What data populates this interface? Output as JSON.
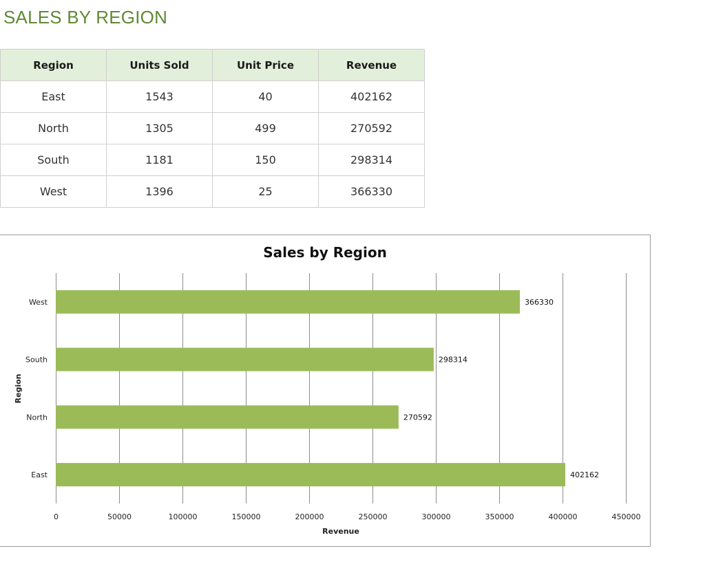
{
  "page": {
    "title": "SALES BY REGION"
  },
  "table": {
    "headers": [
      "Region",
      "Units Sold",
      "Unit Price",
      "Revenue"
    ],
    "rows": [
      [
        "East",
        "1543",
        "40",
        "402162"
      ],
      [
        "North",
        "1305",
        "499",
        "270592"
      ],
      [
        "South",
        "1181",
        "150",
        "298314"
      ],
      [
        "West",
        "1396",
        "25",
        "366330"
      ]
    ]
  },
  "colors": {
    "title": "#5f8a33",
    "header_fill": "#e2efda",
    "bar": "#9bbb59"
  },
  "chart_data": {
    "type": "bar",
    "orientation": "horizontal",
    "title": "Sales by Region",
    "xlabel": "Revenue",
    "ylabel": "Region",
    "categories": [
      "East",
      "North",
      "South",
      "West"
    ],
    "values": [
      402162,
      270592,
      298314,
      366330
    ],
    "xlim": [
      0,
      450000
    ],
    "x_ticks": [
      "0",
      "50000",
      "100000",
      "150000",
      "200000",
      "250000",
      "300000",
      "350000",
      "400000",
      "450000"
    ],
    "data_labels": [
      "402162",
      "270592",
      "298314",
      "366330"
    ],
    "grid": "vertical",
    "legend": "none",
    "bar_color": "#9bbb59"
  }
}
